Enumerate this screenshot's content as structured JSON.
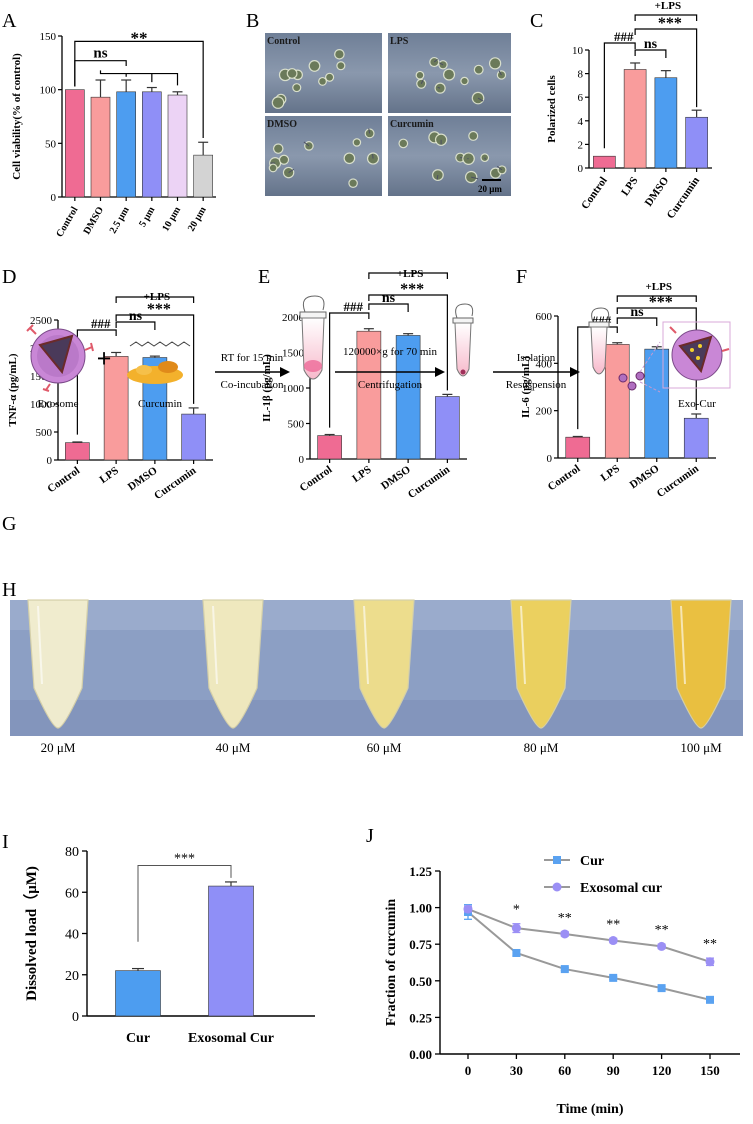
{
  "colors": {
    "pink": "#ef6b93",
    "salmon": "#f99c9c",
    "blue": "#4d9df0",
    "lavender": "#8f8ff7",
    "lilac": "#ecd3f5",
    "gray": "#d3d3d3",
    "cur_blue": "#5aa2f1",
    "exo_purple": "#9b8ff5",
    "curcumin_yellow": "#f3b12c"
  },
  "chart_data": [
    {
      "id": "A",
      "panel_label": "A",
      "type": "bar",
      "ylabel": "Cell viability(% of control)",
      "ylim": [
        0,
        150
      ],
      "yticks": [
        "0",
        "50",
        "100",
        "150"
      ],
      "categories": [
        "Control",
        "DMSO",
        "2.5 μm",
        "5 μm",
        "10 μm",
        "20 μm"
      ],
      "values": [
        100,
        93,
        98,
        98,
        95,
        39
      ],
      "errors": [
        0,
        16,
        11,
        4,
        3,
        12
      ],
      "bar_colors": [
        "#ef6b93",
        "#f99c9c",
        "#4d9df0",
        "#8f8ff7",
        "#ecd3f5",
        "#d3d3d3"
      ],
      "annotations": [
        "ns",
        "**"
      ]
    },
    {
      "id": "C",
      "panel_label": "C",
      "type": "bar",
      "ylabel": "Polarized cells",
      "ylim": [
        0,
        10
      ],
      "yticks": [
        "0",
        "2",
        "4",
        "6",
        "8",
        "10"
      ],
      "categories": [
        "Control",
        "LPS",
        "DMSO",
        "Curcumin"
      ],
      "values": [
        1.0,
        8.35,
        7.65,
        4.3
      ],
      "errors": [
        0,
        0.55,
        0.6,
        0.6
      ],
      "bar_colors": [
        "#ef6b93",
        "#f99c9c",
        "#4d9df0",
        "#8f8ff7"
      ],
      "annotations": [
        "+LPS",
        "###",
        "ns",
        "***"
      ]
    },
    {
      "id": "D",
      "panel_label": "D",
      "type": "bar",
      "ylabel": "TNF-α (pg/mL)",
      "ylim": [
        0,
        2500
      ],
      "yticks": [
        "0",
        "500",
        "1000",
        "1500",
        "2000",
        "2500"
      ],
      "categories": [
        "Control",
        "LPS",
        "DMSO",
        "Curcumin"
      ],
      "values": [
        310,
        1850,
        1830,
        820
      ],
      "errors": [
        12,
        70,
        25,
        110
      ],
      "bar_colors": [
        "#ef6b93",
        "#f99c9c",
        "#4d9df0",
        "#8f8ff7"
      ],
      "annotations": [
        "+LPS",
        "###",
        "ns",
        "***"
      ]
    },
    {
      "id": "E",
      "panel_label": "E",
      "type": "bar",
      "ylabel": "IL-1β (pg/mL)",
      "ylim": [
        0,
        2000
      ],
      "yticks": [
        "0",
        "500",
        "1000",
        "1500",
        "2000"
      ],
      "categories": [
        "Control",
        "LPS",
        "DMSO",
        "Curcumin"
      ],
      "values": [
        330,
        1800,
        1740,
        880
      ],
      "errors": [
        15,
        35,
        25,
        30
      ],
      "bar_colors": [
        "#ef6b93",
        "#f99c9c",
        "#4d9df0",
        "#8f8ff7"
      ],
      "annotations": [
        "+LPS",
        "###",
        "ns",
        "***"
      ]
    },
    {
      "id": "F",
      "panel_label": "F",
      "type": "bar",
      "ylabel": "IL-6 (pg/mL)",
      "ylim": [
        0,
        600
      ],
      "yticks": [
        "0",
        "200",
        "400",
        "600"
      ],
      "categories": [
        "Control",
        "LPS",
        "DMSO",
        "Curcumin"
      ],
      "values": [
        88,
        480,
        460,
        168
      ],
      "errors": [
        3,
        7,
        10,
        18
      ],
      "bar_colors": [
        "#ef6b93",
        "#f99c9c",
        "#4d9df0",
        "#8f8ff7"
      ],
      "annotations": [
        "+LPS",
        "###",
        "ns",
        "***"
      ]
    },
    {
      "id": "I",
      "panel_label": "I",
      "type": "bar",
      "ylabel": "Dissolved load（μM)",
      "ylim": [
        0,
        80
      ],
      "yticks": [
        "0",
        "20",
        "40",
        "60",
        "80"
      ],
      "categories": [
        "Cur",
        "Exosomal Cur"
      ],
      "values": [
        22,
        63
      ],
      "errors": [
        1,
        2
      ],
      "bar_colors": [
        "#4d9df0",
        "#8f8ff7"
      ],
      "annotations": [
        "***"
      ]
    },
    {
      "id": "J",
      "panel_label": "J",
      "type": "line",
      "xlabel": "Time (min)",
      "ylabel": "Fraction of curcumin",
      "xlim": [
        0,
        150
      ],
      "ylim": [
        0,
        1.25
      ],
      "xticks": [
        "0",
        "30",
        "60",
        "90",
        "120",
        "150"
      ],
      "yticks": [
        "0.00",
        "0.25",
        "0.50",
        "0.75",
        "1.00",
        "1.25"
      ],
      "x": [
        0,
        30,
        60,
        90,
        120,
        150
      ],
      "series": [
        {
          "name": "Cur",
          "values": [
            0.97,
            0.69,
            0.58,
            0.52,
            0.45,
            0.37
          ],
          "errors": [
            0.05,
            0.02,
            0.01,
            0.01,
            0.01,
            0.01
          ]
        },
        {
          "name": "Exosomal cur",
          "values": [
            0.99,
            0.86,
            0.82,
            0.775,
            0.735,
            0.63
          ],
          "errors": [
            0.02,
            0.03,
            0.015,
            0.015,
            0.015,
            0.025
          ]
        }
      ],
      "significance": [
        "",
        "*",
        "**",
        "**",
        "**",
        "**"
      ],
      "legend": "top"
    }
  ],
  "panel_b": {
    "label": "B",
    "quadrants": [
      "Control",
      "LPS",
      "DMSO",
      "Curcumin"
    ],
    "scale_bar": "20 μm"
  },
  "panel_g": {
    "label": "G",
    "exosome_label": "Exosome",
    "plus": "+",
    "curcumin_label": "Curcumin",
    "step1_top": "RT for 15 min",
    "step1_bottom": "Co-incubation",
    "step2_top": "120000×g for 70 min",
    "step2_bottom": "Centrifugation",
    "step3_top": "Isolation",
    "step3_bottom": "Resuspension",
    "product_label": "Exo-Cur"
  },
  "panel_h": {
    "label": "H",
    "tubes": [
      "20 μM",
      "40 μM",
      "60 μM",
      "80 μM",
      "100 μM"
    ]
  }
}
